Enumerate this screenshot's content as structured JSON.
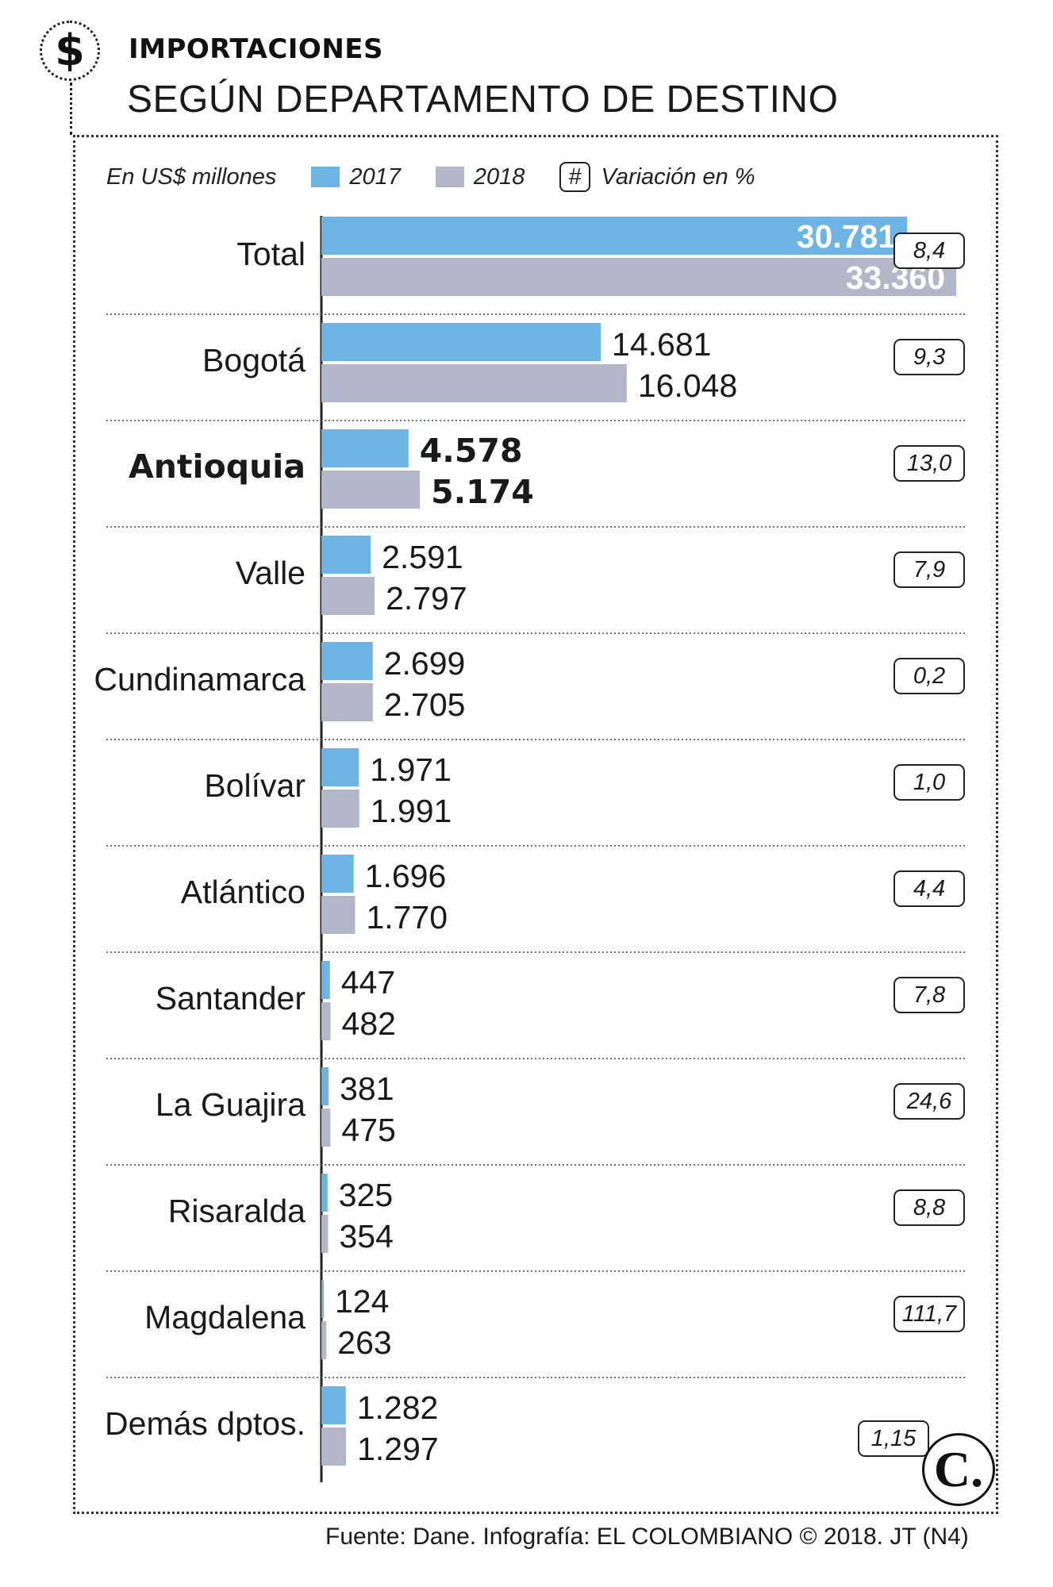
{
  "header": {
    "title": "IMPORTACIONES",
    "subtitle": "SEGÚN DEPARTAMENTO DE DESTINO",
    "icon": "dollar-icon"
  },
  "legend": {
    "units": "En US$ millones",
    "series_2017": "2017",
    "series_2018": "2018",
    "variation_symbol": "#",
    "variation_label": "Variación en %"
  },
  "chart_data": {
    "type": "bar",
    "orientation": "horizontal",
    "units": "En US$ millones",
    "categories": [
      "Total",
      "Bogotá",
      "Antioquia",
      "Valle",
      "Cundinamarca",
      "Bolívar",
      "Atlántico",
      "Santander",
      "La Guajira",
      "Risaralda",
      "Magdalena",
      "Demás dptos."
    ],
    "series": [
      {
        "name": "2017",
        "color": "#6cb4e4",
        "values": [
          30781,
          14681,
          4578,
          2591,
          2699,
          1971,
          1696,
          447,
          381,
          325,
          124,
          1282
        ],
        "labels": [
          "30.781",
          "14.681",
          "4.578",
          "2.591",
          "2.699",
          "1.971",
          "1.696",
          "447",
          "381",
          "325",
          "124",
          "1.282"
        ]
      },
      {
        "name": "2018",
        "color": "#b3b6c9",
        "values": [
          33360,
          16048,
          5174,
          2797,
          2705,
          1991,
          1770,
          482,
          475,
          354,
          263,
          1297
        ],
        "labels": [
          "33.360",
          "16.048",
          "5.174",
          "2.797",
          "2.705",
          "1.991",
          "1.770",
          "482",
          "475",
          "354",
          "263",
          "1.297"
        ]
      }
    ],
    "variation": [
      "8,4",
      "9,3",
      "13,0",
      "7,9",
      "0,2",
      "1,0",
      "4,4",
      "7,8",
      "24,6",
      "8,8",
      "111,7",
      "1,15"
    ],
    "highlight": "Antioquia",
    "legend_position": "top",
    "grid": false
  },
  "footer": {
    "source": "Fuente: Dane. Infografía: EL COLOMBIANO © 2018. JT (N4)",
    "logo_letter": "C.",
    "logo_icon": "el-colombiano-logo-icon"
  }
}
